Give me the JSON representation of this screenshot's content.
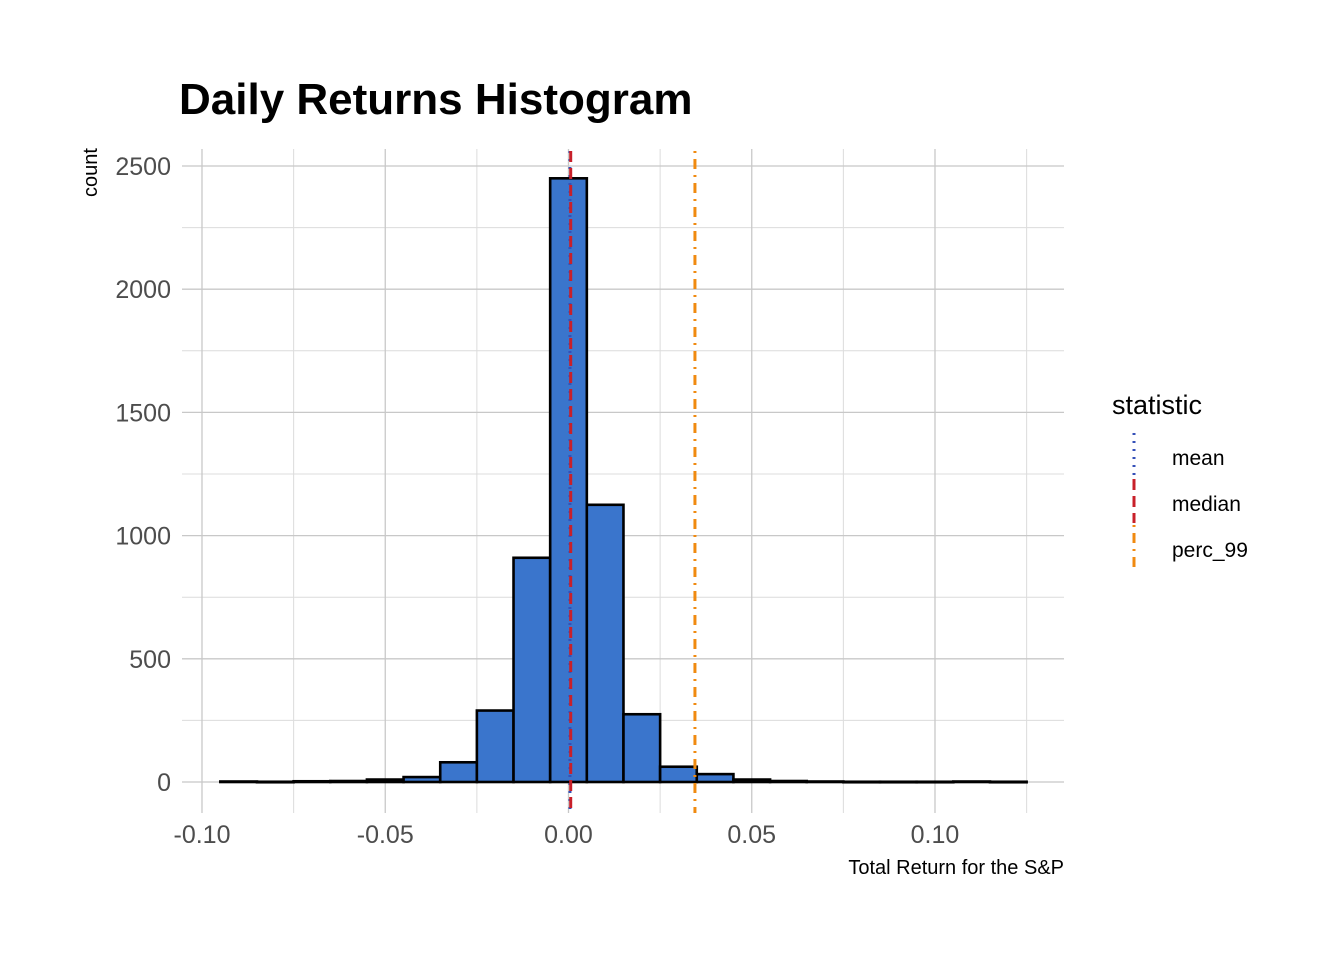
{
  "chart_data": {
    "type": "bar",
    "title": "Daily Returns Histogram",
    "xlabel": "Total Return for the S&P",
    "ylabel": "count",
    "xlim": [
      -0.1,
      0.125
    ],
    "ylim": [
      0,
      2580
    ],
    "x_ticks": [
      -0.1,
      -0.05,
      0.0,
      0.05,
      0.1
    ],
    "x_tick_labels": [
      "-0.10",
      "-0.05",
      "0.00",
      "0.05",
      "0.10"
    ],
    "y_ticks": [
      0,
      500,
      1000,
      1500,
      2000,
      2500
    ],
    "y_tick_labels": [
      "0",
      "500",
      "1000",
      "1500",
      "2000",
      "2500"
    ],
    "grid": true,
    "bin_width": 0.01,
    "bins": [
      {
        "x0": -0.095,
        "x1": -0.085,
        "count": 2
      },
      {
        "x0": -0.085,
        "x1": -0.075,
        "count": 1
      },
      {
        "x0": -0.075,
        "x1": -0.065,
        "count": 3
      },
      {
        "x0": -0.065,
        "x1": -0.055,
        "count": 4
      },
      {
        "x0": -0.055,
        "x1": -0.045,
        "count": 10
      },
      {
        "x0": -0.045,
        "x1": -0.035,
        "count": 20
      },
      {
        "x0": -0.035,
        "x1": -0.025,
        "count": 80
      },
      {
        "x0": -0.025,
        "x1": -0.015,
        "count": 290
      },
      {
        "x0": -0.015,
        "x1": -0.005,
        "count": 910
      },
      {
        "x0": -0.005,
        "x1": 0.005,
        "count": 2450
      },
      {
        "x0": 0.005,
        "x1": 0.015,
        "count": 1125
      },
      {
        "x0": 0.015,
        "x1": 0.025,
        "count": 275
      },
      {
        "x0": 0.025,
        "x1": 0.035,
        "count": 62
      },
      {
        "x0": 0.035,
        "x1": 0.045,
        "count": 32
      },
      {
        "x0": 0.045,
        "x1": 0.055,
        "count": 10
      },
      {
        "x0": 0.055,
        "x1": 0.065,
        "count": 4
      },
      {
        "x0": 0.065,
        "x1": 0.075,
        "count": 2
      },
      {
        "x0": 0.075,
        "x1": 0.085,
        "count": 1
      },
      {
        "x0": 0.085,
        "x1": 0.095,
        "count": 1
      },
      {
        "x0": 0.095,
        "x1": 0.105,
        "count": 1
      },
      {
        "x0": 0.105,
        "x1": 0.115,
        "count": 2
      },
      {
        "x0": 0.115,
        "x1": 0.125,
        "count": 1
      }
    ],
    "bar_fill": "#3a75cc",
    "bar_stroke": "#000000",
    "legend": {
      "title": "statistic",
      "position": "right",
      "entries": [
        {
          "name": "mean",
          "color": "#3550b8",
          "linetype": "dotted"
        },
        {
          "name": "median",
          "color": "#c8202a",
          "linetype": "dashed"
        },
        {
          "name": "perc_99",
          "color": "#f08a10",
          "linetype": "dotdash"
        }
      ]
    },
    "vlines": [
      {
        "statistic": "mean",
        "x": 0.0004,
        "color": "#3550b8",
        "linetype": "dotted"
      },
      {
        "statistic": "median",
        "x": 0.0006,
        "color": "#c8202a",
        "linetype": "dashed"
      },
      {
        "statistic": "perc_99",
        "x": 0.0345,
        "color": "#f08a10",
        "linetype": "dotdash"
      }
    ]
  }
}
